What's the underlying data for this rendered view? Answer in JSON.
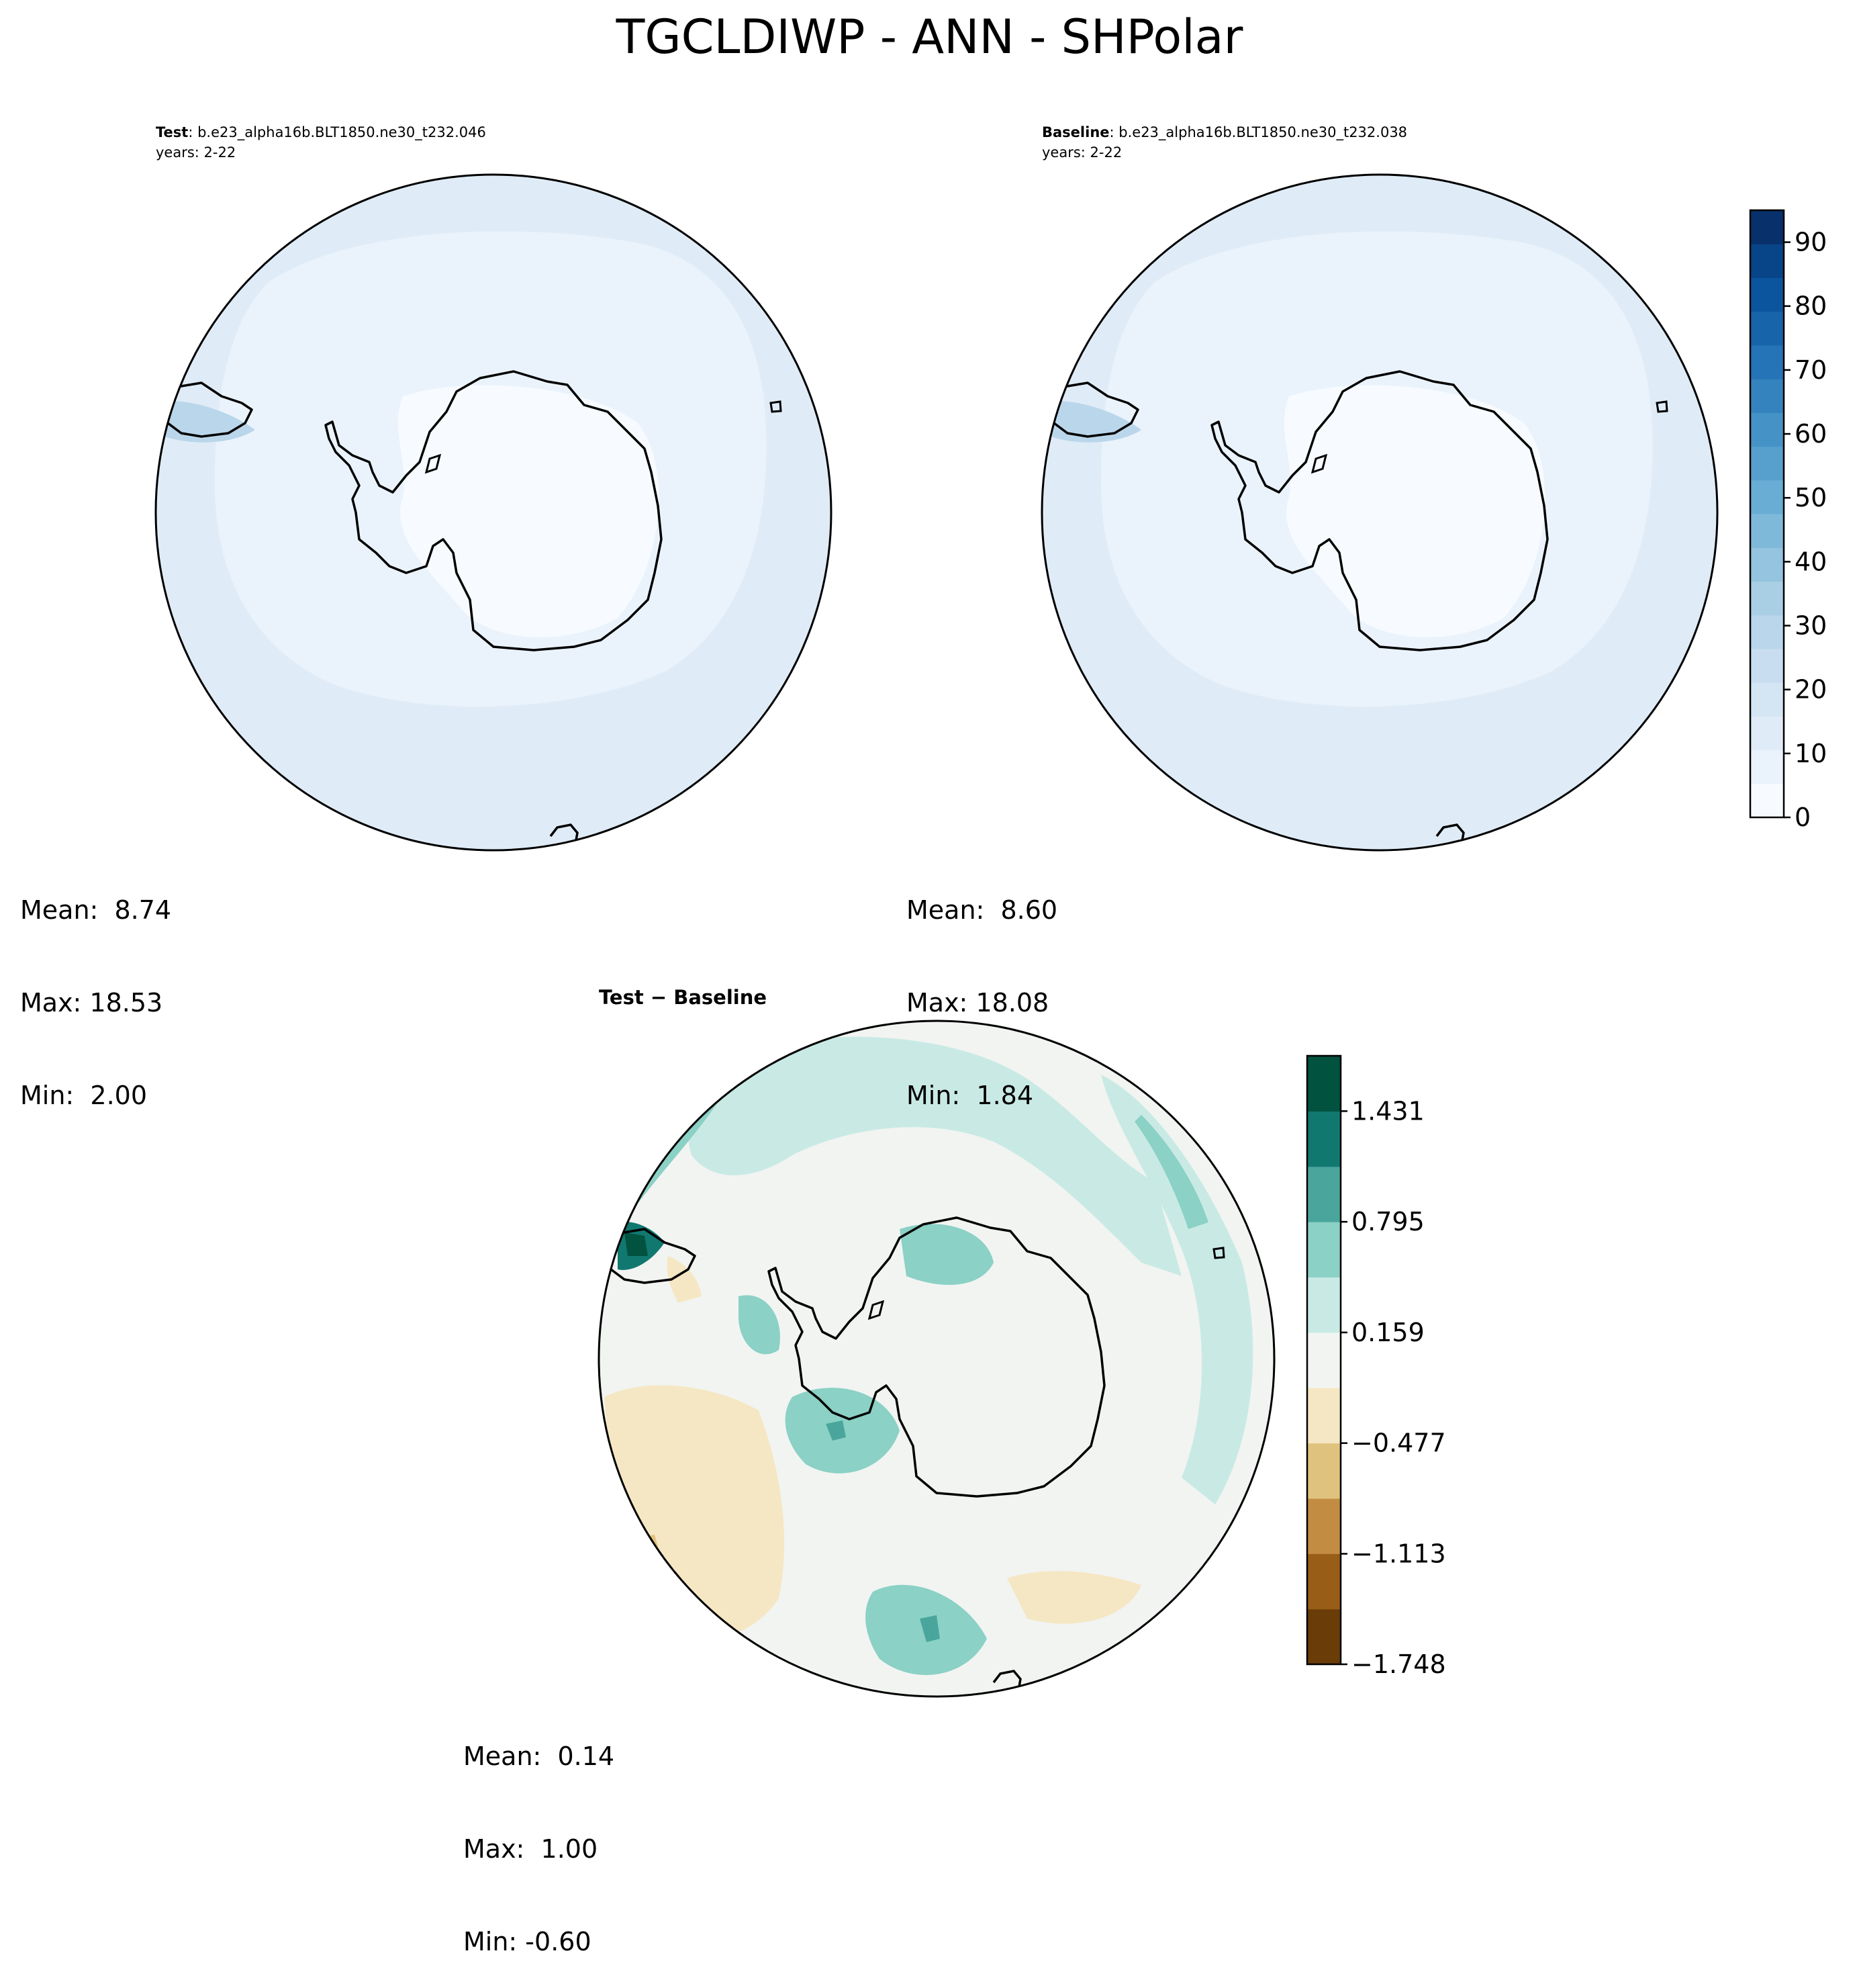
{
  "figure_title": "TGCLDIWP - ANN - SHPolar",
  "panels": [
    {
      "id": "test",
      "label_bold": "Test",
      "label_rest": ": b.e23_alpha16b.BLT1850.ne30_t232.046",
      "years": "years: 2-22",
      "stats": {
        "mean": "Mean:  8.74",
        "max": "Max: 18.53",
        "min": "Min:  2.00"
      }
    },
    {
      "id": "baseline",
      "label_bold": "Baseline",
      "label_rest": ": b.e23_alpha16b.BLT1850.ne30_t232.038",
      "years": "years: 2-22",
      "stats": {
        "mean": "Mean:  8.60",
        "max": "Max: 18.08",
        "min": "Min:  1.84"
      }
    },
    {
      "id": "diff",
      "title": "Test − Baseline",
      "stats": {
        "mean": "Mean:  0.14",
        "max": "Max:  1.00",
        "min": "Min: -0.60"
      }
    }
  ],
  "colorbars": {
    "main": {
      "min": 0,
      "max": 95,
      "ticks": [
        "0",
        "10",
        "20",
        "30",
        "40",
        "50",
        "60",
        "70",
        "80",
        "90"
      ],
      "tick_values": [
        0,
        10,
        20,
        30,
        40,
        50,
        60,
        70,
        80,
        90
      ],
      "colors": [
        "#f7fbff",
        "#eaf3fb",
        "#dfecf7",
        "#d4e5f4",
        "#c9ddf0",
        "#bad6eb",
        "#a9cfe5",
        "#94c4df",
        "#7fb9da",
        "#69add5",
        "#579fcd",
        "#4592c6",
        "#3483be",
        "#2474b7",
        "#1864aa",
        "#0b559f",
        "#084488",
        "#08306b"
      ]
    },
    "diff": {
      "min": -1.748,
      "max": 1.749,
      "ticks": [
        "−1.748",
        "−1.113",
        "−0.477",
        "0.159",
        "0.795",
        "1.431"
      ],
      "tick_values": [
        -1.748,
        -1.113,
        -0.477,
        0.159,
        0.795,
        1.431
      ],
      "colors": [
        "#6a3c08",
        "#985d16",
        "#c38c43",
        "#dfc27d",
        "#f5e7c3",
        "#f2f4f2",
        "#c9eae4",
        "#8bd1c5",
        "#4aa69c",
        "#117870",
        "#01523f"
      ]
    }
  },
  "regions": {
    "continent": "Antarctica",
    "projection": "south polar stereographic"
  }
}
